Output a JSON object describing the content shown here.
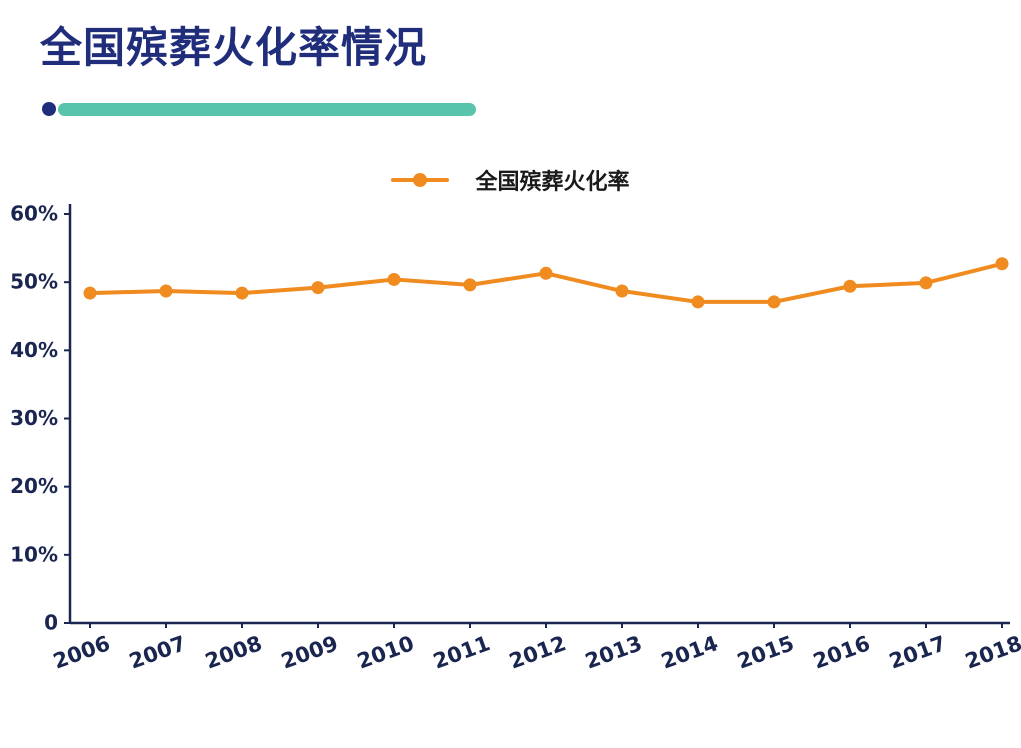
{
  "page": {
    "title": "全国殡葬火化率情况"
  },
  "legend": {
    "label": "全国殡葬火化率"
  },
  "colors": {
    "title_navy": "#1f2d7b",
    "teal_bar": "#57c4ab",
    "line_orange": "#ef8b1f",
    "axis": "#1b2653",
    "axis_text": "#1a2550"
  },
  "chart_data": {
    "type": "line",
    "title": "全国殡葬火化率情况",
    "xlabel": "",
    "ylabel": "",
    "x": [
      2006,
      2007,
      2008,
      2009,
      2010,
      2011,
      2012,
      2013,
      2014,
      2015,
      2016,
      2017,
      2018
    ],
    "series": [
      {
        "name": "全国殡葬火化率",
        "values": [
          48.4,
          48.7,
          48.4,
          49.2,
          50.4,
          49.6,
          51.3,
          48.7,
          47.1,
          47.1,
          49.4,
          49.9,
          52.7
        ]
      }
    ],
    "ylim": [
      0,
      60
    ],
    "yticks": [
      {
        "value": 60,
        "label": "60%"
      },
      {
        "value": 50,
        "label": "50%"
      },
      {
        "value": 40,
        "label": "40%"
      },
      {
        "value": 30,
        "label": "30%"
      },
      {
        "value": 20,
        "label": "20%"
      },
      {
        "value": 10,
        "label": "10%"
      },
      {
        "value": 0,
        "label": "0"
      }
    ],
    "grid": false,
    "legend_position": "top-center",
    "marker": "circle"
  }
}
